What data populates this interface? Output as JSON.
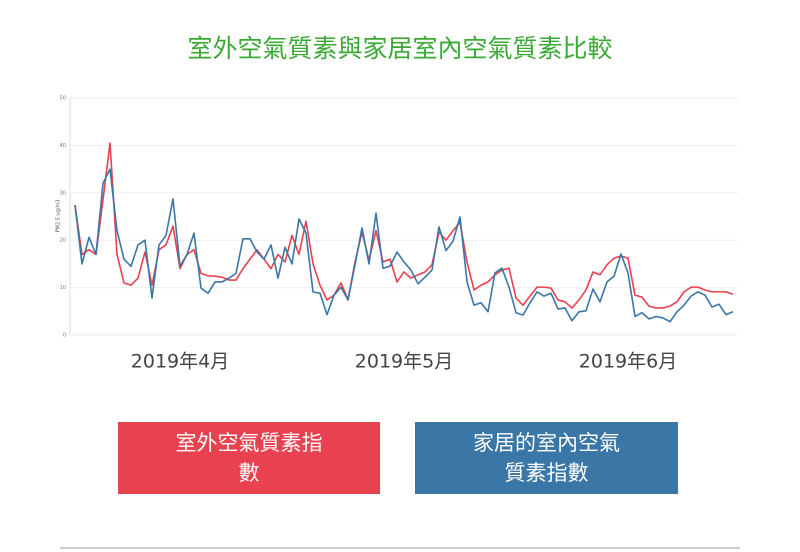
{
  "chart_data": {
    "type": "line",
    "title": "室外空氣質素與家居室內空氣質素比較",
    "ylabel": "PM2.5 ug/m3",
    "ylim": [
      0,
      50
    ],
    "yticks": [
      0,
      10,
      20,
      30,
      40,
      50
    ],
    "grid": true,
    "categories": [
      null,
      null,
      null,
      null,
      null,
      null,
      null,
      null,
      null,
      null,
      null,
      null,
      null,
      null,
      null,
      "2019年4月",
      null,
      null,
      null,
      null,
      null,
      null,
      null,
      null,
      null,
      null,
      null,
      null,
      null,
      null,
      null,
      null,
      null,
      null,
      null,
      null,
      null,
      null,
      null,
      null,
      null,
      null,
      null,
      null,
      null,
      null,
      null,
      "2019年5月",
      null,
      null,
      null,
      null,
      null,
      null,
      null,
      null,
      null,
      null,
      null,
      null,
      null,
      null,
      null,
      null,
      null,
      null,
      null,
      null,
      null,
      null,
      null,
      null,
      null,
      null,
      null,
      null,
      null,
      null,
      null,
      "2019年6月",
      null,
      null,
      null,
      null,
      null,
      null,
      null,
      null,
      null,
      null,
      null,
      null,
      null,
      null,
      null
    ],
    "series": [
      {
        "name": "室外空氣質素指數",
        "color": "#e8414f",
        "values": [
          27.4,
          17,
          18,
          17,
          28.5,
          40.5,
          17,
          11,
          10.5,
          12,
          17.5,
          10.5,
          18,
          19,
          23,
          14,
          17,
          18,
          13,
          12.5,
          12.4,
          12.2,
          11.6,
          11.6,
          14,
          16,
          18,
          16,
          14,
          17,
          15.4,
          21,
          17,
          24,
          15,
          10.5,
          7.4,
          8.4,
          11,
          7.4,
          15.4,
          21.7,
          15.8,
          22,
          15.4,
          16,
          11.2,
          13.3,
          12,
          12.7,
          13.3,
          14.8,
          21.7,
          20,
          22,
          23.8,
          15.4,
          9.5,
          10.5,
          11.2,
          12.7,
          13.7,
          14.1,
          7.8,
          6.3,
          8.2,
          10.1,
          10.1,
          9.9,
          7.4,
          7,
          5.7,
          7.4,
          9.5,
          13.3,
          12.7,
          14.8,
          16.2,
          16.7,
          16.2,
          8.4,
          8,
          6.1,
          5.7,
          5.7,
          6.1,
          7,
          9.1,
          10.1,
          10.1,
          9.5,
          9.1,
          9.1,
          9.1,
          8.6
        ]
      },
      {
        "name": "家居的室內空氣質素指數",
        "color": "#3a76a6",
        "values": [
          27.4,
          15,
          20.6,
          17,
          32,
          35,
          22,
          16,
          14.5,
          19,
          20,
          7.8,
          19,
          21,
          28.7,
          14.5,
          17,
          21.5,
          9.9,
          8.8,
          11.2,
          11.2,
          12,
          13,
          20.3,
          20.3,
          17.5,
          16,
          19,
          12,
          18.5,
          15,
          24.5,
          21.5,
          9.1,
          8.8,
          4.3,
          8.4,
          10.1,
          7.4,
          14.8,
          22.6,
          15,
          25.7,
          14.1,
          14.5,
          17.5,
          15.4,
          13.7,
          10.8,
          12.2,
          13.7,
          22.8,
          17.8,
          19.8,
          24.9,
          11.2,
          6.3,
          6.8,
          4.9,
          13.1,
          14.1,
          10.1,
          4.7,
          4.2,
          6.8,
          9.1,
          8.2,
          8.8,
          5.5,
          5.7,
          3,
          4.9,
          5.1,
          9.7,
          7,
          11.2,
          12.4,
          17.1,
          13.1,
          3.9,
          4.7,
          3.4,
          3.9,
          3.6,
          2.8,
          4.9,
          6.3,
          8.2,
          9.1,
          8.4,
          5.9,
          6.5,
          4.3,
          4.9
        ]
      }
    ]
  }
}
